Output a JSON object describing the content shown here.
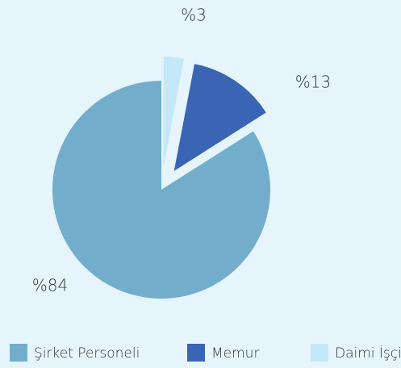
{
  "chart_data": {
    "type": "pie",
    "categories": [
      "Şirket Personeli",
      "Memur",
      "Daimi İşçi"
    ],
    "values": [
      84,
      13,
      3
    ],
    "value_labels": [
      "%84",
      "%13",
      "%3"
    ],
    "colors": [
      "#72aecb",
      "#3a64b4",
      "#c4e8f8"
    ],
    "legend": "bottom"
  }
}
